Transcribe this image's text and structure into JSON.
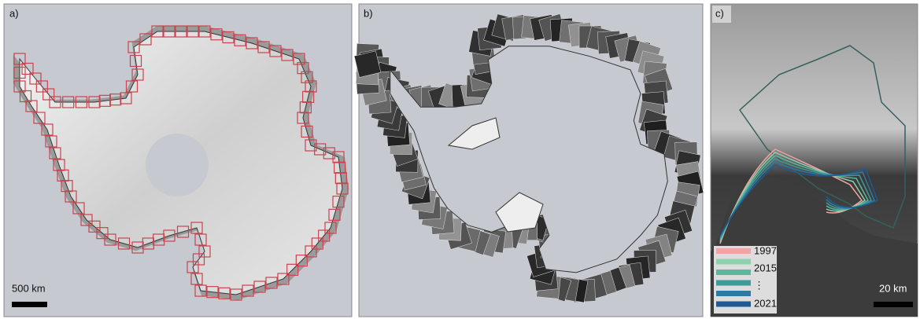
{
  "panels": [
    {
      "label": "a)",
      "scale_bar": "500 km"
    },
    {
      "label": "b)"
    },
    {
      "label": "c)",
      "scale_bar": "20 km",
      "legend": {
        "labels": [
          "1997",
          "2015",
          "⋮",
          "2021"
        ],
        "colors": [
          "#f2a3a3",
          "#8fd0b0",
          "#5cb89c",
          "#3f9a9a",
          "#2f7aa0",
          "#1f5a92"
        ]
      }
    }
  ]
}
